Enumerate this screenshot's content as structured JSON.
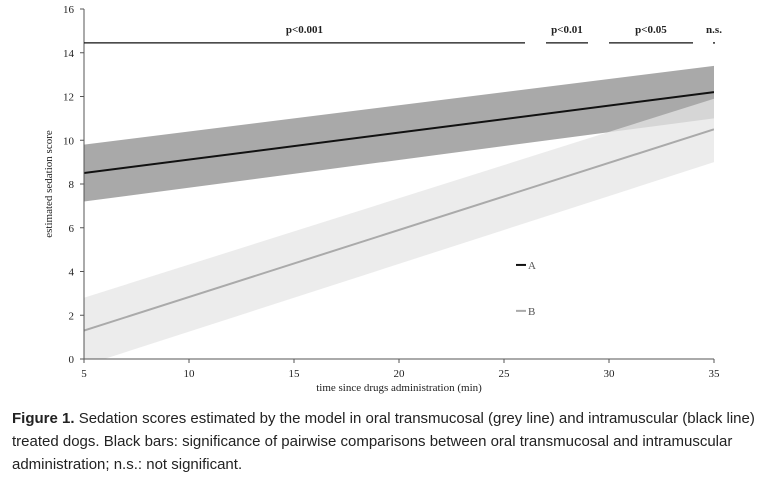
{
  "chart_data": {
    "type": "line",
    "title": "",
    "xlabel": "time since drugs administration (min)",
    "ylabel": "estimated sedation score",
    "xlim": [
      5,
      35
    ],
    "ylim": [
      0,
      16
    ],
    "xticks": [
      5,
      10,
      15,
      20,
      25,
      30,
      35
    ],
    "yticks": [
      0,
      2,
      4,
      6,
      8,
      10,
      12,
      14,
      16
    ],
    "grid": false,
    "legend": "center-right",
    "series": [
      {
        "name": "A",
        "color": "#111111",
        "band_color": "#9a9a9a",
        "x": [
          5,
          35
        ],
        "y": [
          8.5,
          12.2
        ],
        "lower": [
          7.2,
          11.0
        ],
        "upper": [
          9.8,
          13.4
        ]
      },
      {
        "name": "B",
        "color": "#aaaaaa",
        "band_color": "#e6e6e6",
        "x": [
          5,
          35
        ],
        "y": [
          1.3,
          10.5
        ],
        "lower": [
          -0.3,
          9.0
        ],
        "upper": [
          2.8,
          11.9
        ]
      }
    ],
    "annotations": [
      {
        "label": "p<0.001",
        "x_start": 5,
        "x_end": 26,
        "y": 14.45
      },
      {
        "label": "p<0.01",
        "x_start": 27,
        "x_end": 29,
        "y": 14.45
      },
      {
        "label": "p<0.05",
        "x_start": 30,
        "x_end": 34,
        "y": 14.45
      },
      {
        "label": "n.s.",
        "x_start": 35,
        "x_end": 35,
        "y": 14.45
      }
    ]
  },
  "caption": {
    "label": "Figure 1.",
    "text": "Sedation scores estimated by the model in oral transmucosal (grey line) and intramuscular (black line) treated dogs. Black bars: significance of pairwise comparisons between oral transmucosal and intramuscular administration; n.s.: not significant."
  }
}
